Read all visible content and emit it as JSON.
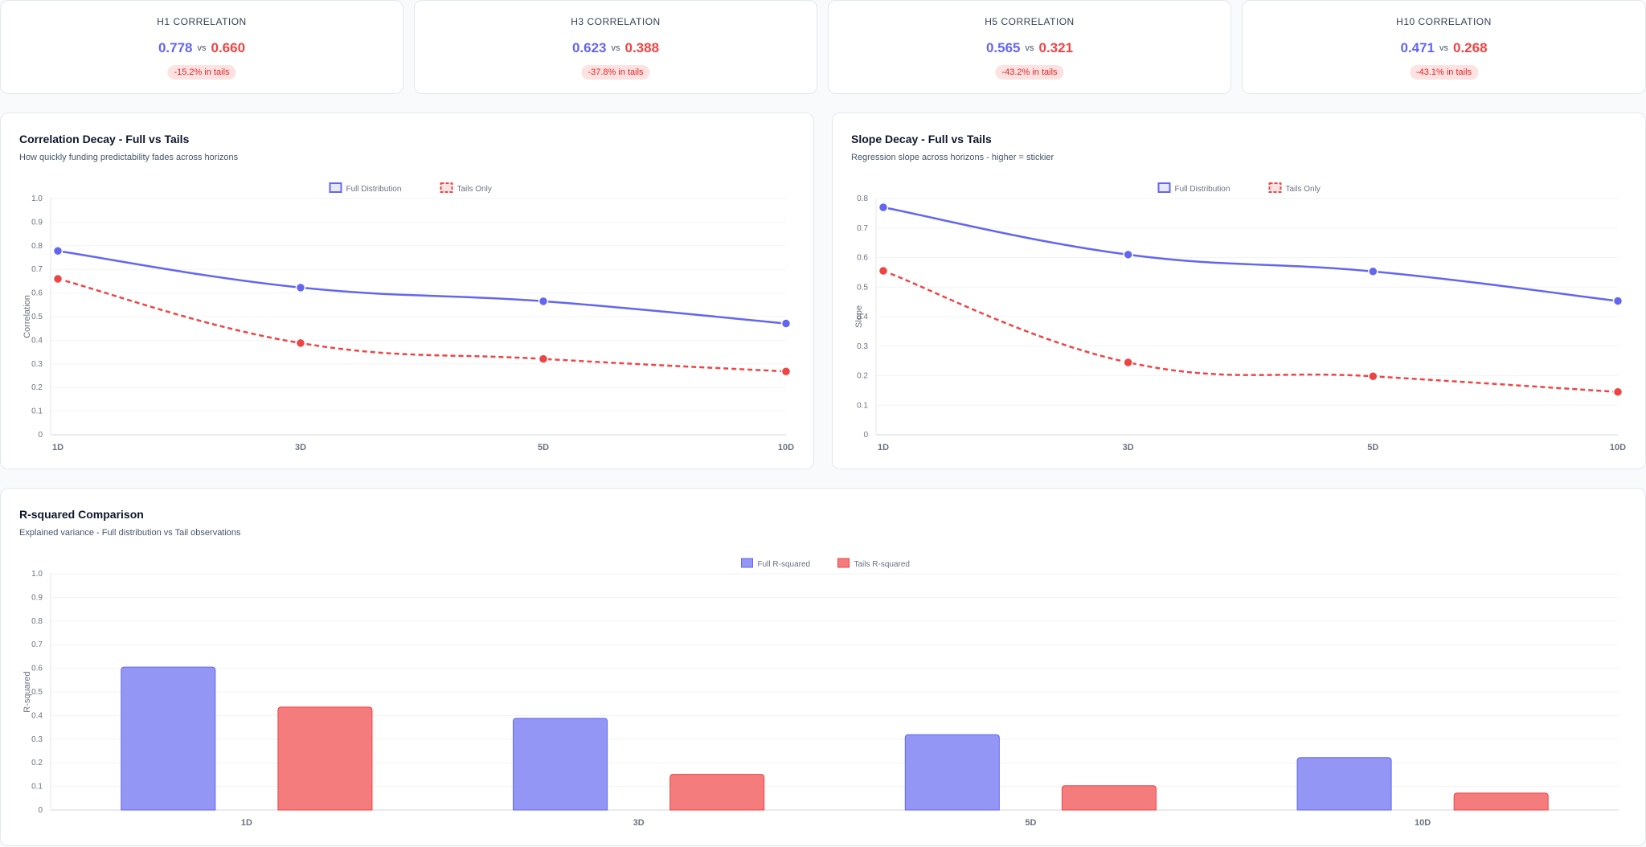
{
  "stats": [
    {
      "label": "H1 CORRELATION",
      "full": "0.778",
      "vs": "vs",
      "tails": "0.660",
      "change": "-15.2% in tails"
    },
    {
      "label": "H3 CORRELATION",
      "full": "0.623",
      "vs": "vs",
      "tails": "0.388",
      "change": "-37.8% in tails"
    },
    {
      "label": "H5 CORRELATION",
      "full": "0.565",
      "vs": "vs",
      "tails": "0.321",
      "change": "-43.2% in tails"
    },
    {
      "label": "H10 CORRELATION",
      "full": "0.471",
      "vs": "vs",
      "tails": "0.268",
      "change": "-43.1% in tails"
    }
  ],
  "colors": {
    "full": "#6366f1",
    "tails": "#ef4444",
    "full_bar": "#9396f5",
    "tails_bar": "#f47c7c"
  },
  "chart_data": [
    {
      "type": "line",
      "title": "Correlation Decay - Full vs Tails",
      "subtitle": "How quickly funding predictability fades across horizons",
      "categories": [
        "1D",
        "3D",
        "5D",
        "10D"
      ],
      "series": [
        {
          "name": "Full Distribution",
          "values": [
            0.778,
            0.623,
            0.565,
            0.471
          ]
        },
        {
          "name": "Tails Only",
          "values": [
            0.66,
            0.388,
            0.321,
            0.268
          ]
        }
      ],
      "xlabel": "",
      "ylabel": "Correlation",
      "ylim": [
        0,
        1.0
      ],
      "yticks": [
        "0",
        "0.1",
        "0.2",
        "0.3",
        "0.4",
        "0.5",
        "0.6",
        "0.7",
        "0.8",
        "0.9",
        "1.0"
      ],
      "legend": "top-center"
    },
    {
      "type": "line",
      "title": "Slope Decay - Full vs Tails",
      "subtitle": "Regression slope across horizons - higher = stickier",
      "categories": [
        "1D",
        "3D",
        "5D",
        "10D"
      ],
      "series": [
        {
          "name": "Full Distribution",
          "values": [
            0.77,
            0.61,
            0.553,
            0.453
          ]
        },
        {
          "name": "Tails Only",
          "values": [
            0.555,
            0.245,
            0.198,
            0.145
          ]
        }
      ],
      "xlabel": "",
      "ylabel": "Slope",
      "ylim": [
        0,
        0.8
      ],
      "yticks": [
        "0",
        "0.1",
        "0.2",
        "0.3",
        "0.4",
        "0.5",
        "0.6",
        "0.7",
        "0.8"
      ],
      "legend": "top-center"
    },
    {
      "type": "bar",
      "title": "R-squared Comparison",
      "subtitle": "Explained variance - Full distribution vs Tail observations",
      "categories": [
        "1D",
        "3D",
        "5D",
        "10D"
      ],
      "series": [
        {
          "name": "Full R-squared",
          "values": [
            0.605,
            0.388,
            0.319,
            0.222
          ]
        },
        {
          "name": "Tails R-squared",
          "values": [
            0.436,
            0.151,
            0.103,
            0.072
          ]
        }
      ],
      "xlabel": "",
      "ylabel": "R-squared",
      "ylim": [
        0,
        1.0
      ],
      "yticks": [
        "0",
        "0.1",
        "0.2",
        "0.3",
        "0.4",
        "0.5",
        "0.6",
        "0.7",
        "0.8",
        "0.9",
        "1.0"
      ],
      "legend": "top-center"
    }
  ]
}
